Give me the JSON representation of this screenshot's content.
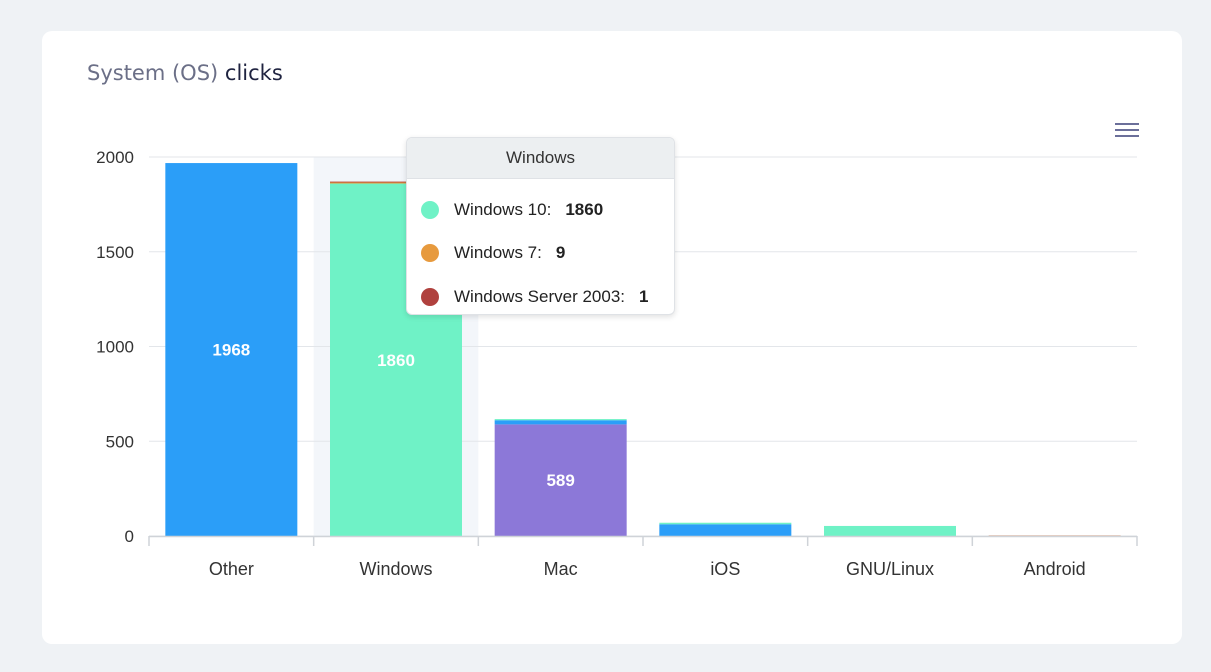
{
  "card": {
    "title_light": "System (OS)",
    "title_strong": "clicks"
  },
  "colors": {
    "other": "#2b9ef8",
    "windows10": "#6ff2c6",
    "windows7": "#e79a3e",
    "winserver2003": "#b0413e",
    "mac": "#8c78d8",
    "mac_top": "#2b9ef8",
    "ios": "#2b9ef8",
    "linux": "#6ff2c6",
    "android": "#e7c9b8",
    "grid": "#e3e6ea",
    "axis_text": "#333333",
    "hover_band": "#f3f6fa"
  },
  "chart_data": {
    "type": "bar",
    "stacked": true,
    "categories": [
      "Other",
      "Windows",
      "Mac",
      "iOS",
      "GNU/Linux",
      "Android"
    ],
    "ylim": [
      0,
      2000
    ],
    "yticks": [
      0,
      500,
      1000,
      1500,
      2000
    ],
    "ytick_labels": [
      "0",
      "500",
      "1000",
      "1500",
      "2000"
    ],
    "grid": true,
    "highlighted_category": "Windows",
    "stacks": [
      [
        {
          "value": 1968,
          "color": "other",
          "label": "1968"
        }
      ],
      [
        {
          "value": 1860,
          "color": "windows10",
          "label": "1860"
        },
        {
          "value": 9,
          "color": "windows7"
        },
        {
          "value": 1,
          "color": "winserver2003"
        }
      ],
      [
        {
          "value": 589,
          "color": "mac",
          "label": "589"
        },
        {
          "value": 22,
          "color": "mac_top"
        },
        {
          "value": 6,
          "color": "windows10"
        }
      ],
      [
        {
          "value": 62,
          "color": "ios"
        },
        {
          "value": 8,
          "color": "linux"
        }
      ],
      [
        {
          "value": 53,
          "color": "linux"
        }
      ],
      [
        {
          "value": 5,
          "color": "android"
        }
      ]
    ]
  },
  "tooltip": {
    "title": "Windows",
    "rows": [
      {
        "label": "Windows 10:",
        "value": "1860",
        "color": "#6ff2c6"
      },
      {
        "label": "Windows 7:",
        "value": "9",
        "color": "#e79a3e"
      },
      {
        "label": "Windows Server 2003:",
        "value": "1",
        "color": "#b0413e"
      }
    ]
  },
  "menu": {
    "icon": "hamburger-menu-icon"
  }
}
